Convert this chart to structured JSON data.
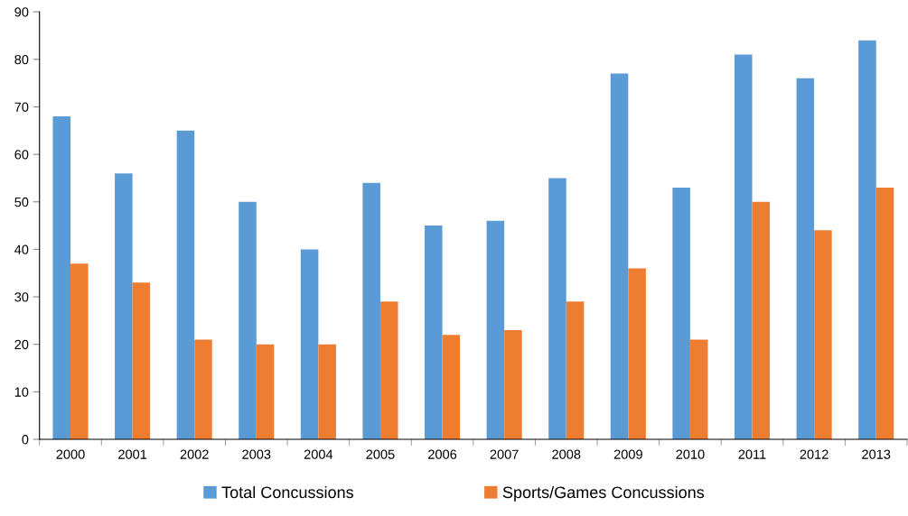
{
  "chart_data": {
    "type": "bar",
    "categories": [
      "2000",
      "2001",
      "2002",
      "2003",
      "2004",
      "2005",
      "2006",
      "2007",
      "2008",
      "2009",
      "2010",
      "2011",
      "2012",
      "2013"
    ],
    "series": [
      {
        "name": "Total Concussions",
        "color": "#5b9bd5",
        "values": [
          68,
          56,
          65,
          50,
          40,
          54,
          45,
          46,
          55,
          77,
          53,
          81,
          76,
          84
        ]
      },
      {
        "name": "Sports/Games Concussions",
        "color": "#ed7d31",
        "values": [
          37,
          33,
          21,
          20,
          20,
          29,
          22,
          23,
          29,
          36,
          21,
          50,
          44,
          53
        ]
      }
    ],
    "ylim": [
      0,
      90
    ],
    "yticks": [
      0,
      10,
      20,
      30,
      40,
      50,
      60,
      70,
      80,
      90
    ],
    "grid": false,
    "legend": "bottom"
  }
}
